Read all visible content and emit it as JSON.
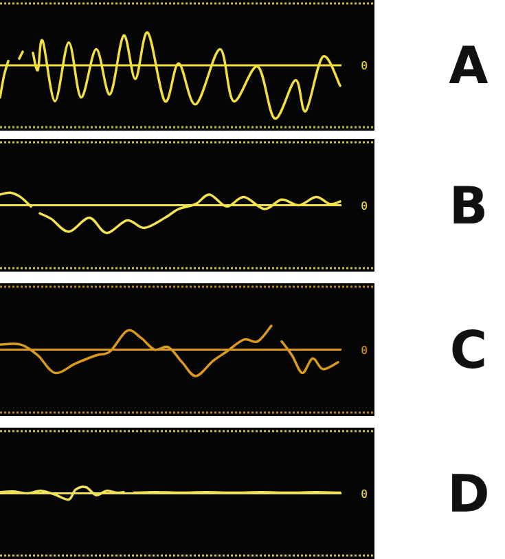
{
  "chart_data": [
    {
      "type": "line",
      "title": "A",
      "color": "#f3e03c",
      "xlim": [
        0,
        100
      ],
      "ylim": [
        -1,
        1
      ],
      "yticks": [
        0
      ],
      "tick_labels": "y",
      "x": [
        0,
        1.2,
        2.4,
        5,
        5.6,
        6.6,
        7.6,
        9.6,
        11,
        12.4,
        16,
        20,
        23.6,
        28,
        32,
        36,
        39.4,
        43,
        48,
        52,
        57,
        64,
        68,
        75,
        80,
        86,
        89,
        94,
        99
      ],
      "values": [
        -0.52,
        -0.16,
        0.07,
        null,
        0.11,
        0.22,
        null,
        0.2,
        -0.08,
        0.4,
        -0.58,
        0.37,
        -0.52,
        0.26,
        -0.47,
        0.48,
        -0.22,
        0.53,
        -0.58,
        0.03,
        -0.63,
        0.26,
        -0.58,
        -0.02,
        -0.86,
        -0.24,
        -0.74,
        0.14,
        -0.33
      ]
    },
    {
      "type": "line",
      "title": "B",
      "color": "#f5e34e",
      "xlim": [
        0,
        100
      ],
      "ylim": [
        -1,
        1
      ],
      "yticks": [
        0
      ],
      "tick_labels": "y",
      "x": [
        0,
        3,
        6,
        9,
        10.5,
        11.6,
        15,
        20,
        26,
        31,
        37,
        42,
        48,
        52,
        57,
        61,
        66,
        71,
        77,
        82,
        87,
        92,
        96,
        99
      ],
      "values": [
        0.17,
        0.2,
        0.13,
        -0.02,
        null,
        -0.13,
        -0.22,
        -0.42,
        -0.2,
        -0.44,
        -0.24,
        -0.36,
        -0.2,
        -0.06,
        0.02,
        0.17,
        -0.02,
        0.13,
        -0.06,
        0.09,
        0,
        0.13,
        0.02,
        0.06
      ]
    },
    {
      "type": "line",
      "title": "C",
      "color": "#dc9a1c",
      "xlim": [
        0,
        100
      ],
      "ylim": [
        -1,
        1
      ],
      "yticks": [
        0
      ],
      "tick_labels": "y",
      "x": [
        0,
        6,
        11,
        16,
        22,
        28,
        32,
        37,
        41,
        45,
        49,
        53,
        57,
        62,
        66,
        71,
        75,
        79,
        80.5,
        82,
        85,
        88,
        91,
        94,
        98.4
      ],
      "values": [
        0.08,
        0.08,
        -0.09,
        -0.37,
        -0.22,
        -0.09,
        -0.03,
        0.3,
        0.19,
        0,
        0.04,
        -0.2,
        -0.42,
        -0.18,
        -0.03,
        0.16,
        0.13,
        0.38,
        null,
        0.13,
        -0.09,
        -0.37,
        -0.14,
        -0.31,
        -0.2
      ]
    },
    {
      "type": "line",
      "title": "D",
      "color": "#efe25a",
      "xlim": [
        0,
        100
      ],
      "ylim": [
        -1,
        1
      ],
      "yticks": [
        0
      ],
      "tick_labels": "y",
      "x": [
        0,
        4,
        8,
        12,
        16,
        20,
        22,
        25,
        28,
        31,
        34,
        36,
        37.5,
        39,
        45,
        52,
        60,
        68,
        76,
        84,
        92,
        99
      ],
      "values": [
        0.02,
        0.03,
        0,
        0.04,
        -0.02,
        -0.1,
        0.06,
        0.1,
        -0.03,
        0.04,
        0.01,
        0.02,
        null,
        0.01,
        0.02,
        0.01,
        0.02,
        0.01,
        0.02,
        0.01,
        0.02,
        0.01
      ]
    }
  ]
}
